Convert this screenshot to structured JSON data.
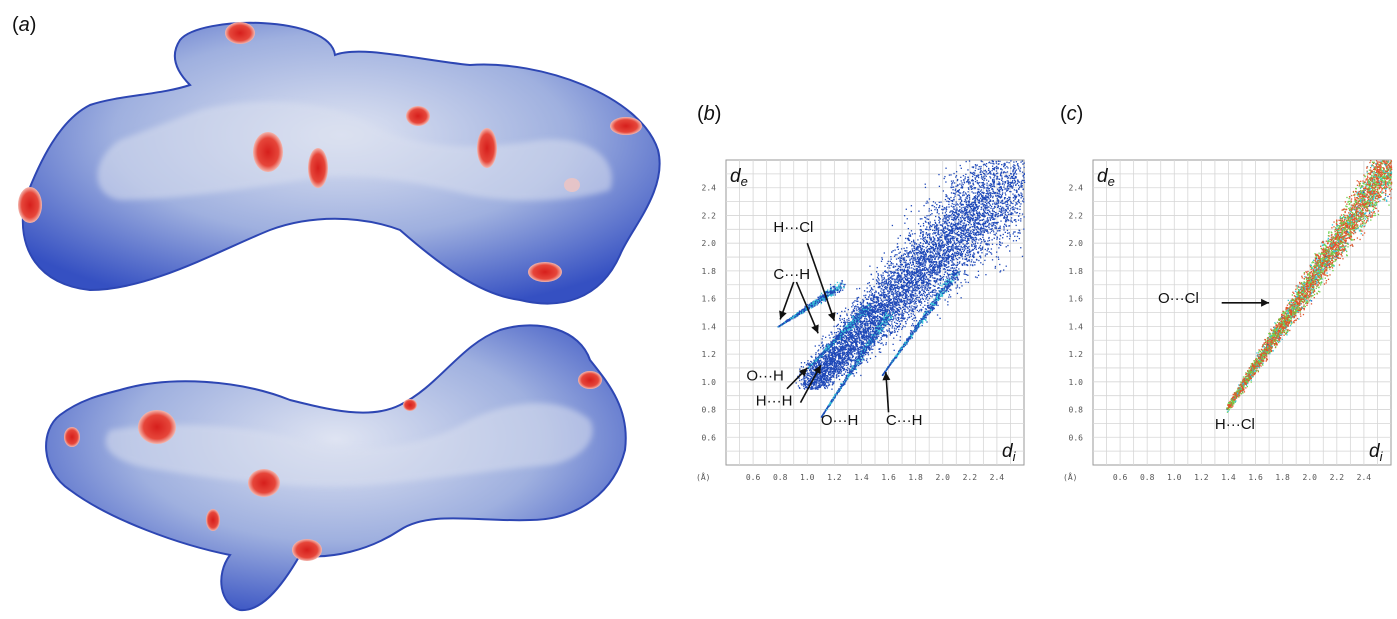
{
  "panels": {
    "a": {
      "label": "a"
    },
    "b": {
      "label": "b"
    },
    "c": {
      "label": "c"
    }
  },
  "colors": {
    "surface_blue": "#3f5fc9",
    "surface_light": "#c9d2ea",
    "spot_red": "#e0332b",
    "point_blue": "#1f49b8",
    "point_cyan": "#36c6d8",
    "point_green": "#6fd04a",
    "point_red": "#e0542a"
  },
  "chart_data": [
    {
      "type": "scatter",
      "panel": "b",
      "ylabel": "d",
      "ylabel_sub": "e",
      "xlabel": "d",
      "xlabel_sub": "i",
      "unit": "(Å)",
      "xticks": [
        "0.6",
        "0.8",
        "1.0",
        "1.2",
        "1.4",
        "1.6",
        "1.8",
        "2.0",
        "2.2",
        "2.4"
      ],
      "yticks": [
        "0.6",
        "0.8",
        "1.0",
        "1.2",
        "1.4",
        "1.6",
        "1.8",
        "2.0",
        "2.2",
        "2.4"
      ],
      "xlim": [
        0.4,
        2.6
      ],
      "ylim": [
        0.4,
        2.6
      ],
      "grid": true,
      "annotations": [
        {
          "text": "H···Cl",
          "x": 0.75,
          "y": 2.08
        },
        {
          "text": "C···H",
          "x": 0.75,
          "y": 1.74
        },
        {
          "text": "O···H",
          "x": 0.55,
          "y": 1.01
        },
        {
          "text": "H···H",
          "x": 0.62,
          "y": 0.83
        },
        {
          "text": "O···H",
          "x": 1.1,
          "y": 0.69
        },
        {
          "text": "C···H",
          "x": 1.58,
          "y": 0.69
        }
      ]
    },
    {
      "type": "scatter",
      "panel": "c",
      "ylabel": "d",
      "ylabel_sub": "e",
      "xlabel": "d",
      "xlabel_sub": "i",
      "unit": "(Å)",
      "xticks": [
        "0.6",
        "0.8",
        "1.0",
        "1.2",
        "1.4",
        "1.6",
        "1.8",
        "2.0",
        "2.2",
        "2.4"
      ],
      "yticks": [
        "0.6",
        "0.8",
        "1.0",
        "1.2",
        "1.4",
        "1.6",
        "1.8",
        "2.0",
        "2.2",
        "2.4"
      ],
      "xlim": [
        0.4,
        2.6
      ],
      "ylim": [
        0.4,
        2.6
      ],
      "grid": true,
      "annotations": [
        {
          "text": "O···Cl",
          "x": 0.88,
          "y": 1.57
        },
        {
          "text": "H···Cl",
          "x": 1.3,
          "y": 0.66
        }
      ]
    }
  ]
}
